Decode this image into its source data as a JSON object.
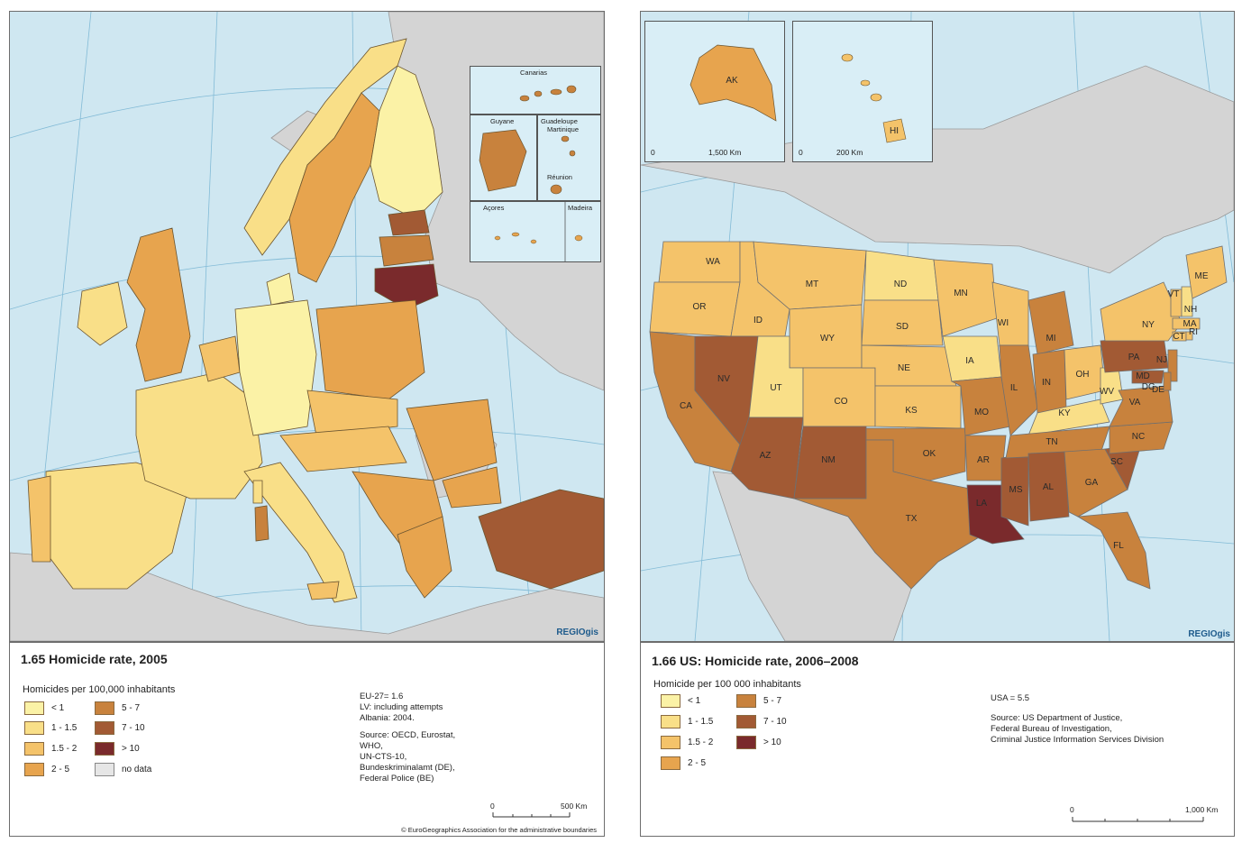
{
  "eu": {
    "title": "1.65 Homicide rate, 2005",
    "legend_heading": "Homicides per 100,000 inhabitants",
    "legend": [
      {
        "label": "< 1",
        "color": "#fbf2a6"
      },
      {
        "label": "1 - 1.5",
        "color": "#f9df88"
      },
      {
        "label": "1.5 - 2",
        "color": "#f4c36a"
      },
      {
        "label": "2 - 5",
        "color": "#e7a44e"
      },
      {
        "label": "5 - 7",
        "color": "#c8823d"
      },
      {
        "label": "7 - 10",
        "color": "#a25a34"
      },
      {
        "label": "> 10",
        "color": "#7a2a2c"
      },
      {
        "label": "no data",
        "color": "#e6e6e6"
      }
    ],
    "notes": [
      "EU-27= 1.6",
      "LV: including attempts",
      "Albania: 2004."
    ],
    "source": [
      "Source: OECD, Eurostat,",
      "WHO,",
      "UN-CTS-10,",
      "Bundeskriminalamt (DE),",
      "Federal Police (BE)"
    ],
    "scale": {
      "start": "0",
      "end": "500 Km"
    },
    "copyright": "© EuroGeographics Association for the administrative boundaries",
    "logo": "REGIOgis",
    "insets": [
      "Canarias",
      "Guyane",
      "Guadeloupe",
      "Martinique",
      "Réunion",
      "Açores",
      "Madeira"
    ]
  },
  "us": {
    "title": "1.66 US: Homicide rate, 2006–2008",
    "legend_heading": "Homicide per 100 000 inhabitants",
    "legend": [
      {
        "label": "< 1",
        "color": "#fbf2a6"
      },
      {
        "label": "1 - 1.5",
        "color": "#f9df88"
      },
      {
        "label": "1.5 - 2",
        "color": "#f4c36a"
      },
      {
        "label": "2 - 5",
        "color": "#e7a44e"
      },
      {
        "label": "5 - 7",
        "color": "#c8823d"
      },
      {
        "label": "7 - 10",
        "color": "#a25a34"
      },
      {
        "label": "> 10",
        "color": "#7a2a2c"
      }
    ],
    "notes": [
      "USA = 5.5"
    ],
    "source": [
      "Source:  US Department of Justice,",
      "Federal Bureau of Investigation,",
      "Criminal Justice Information Services Division"
    ],
    "scale": {
      "start": "0",
      "end": "1,000 Km"
    },
    "ak_scale": {
      "start": "0",
      "end": "1,500 Km"
    },
    "hi_scale": {
      "start": "0",
      "end": "200 Km"
    },
    "logo": "REGIOgis",
    "states": [
      {
        "code": "WA",
        "cls": "1.5 - 2"
      },
      {
        "code": "OR",
        "cls": "1.5 - 2"
      },
      {
        "code": "CA",
        "cls": "5 - 7"
      },
      {
        "code": "ID",
        "cls": "1.5 - 2"
      },
      {
        "code": "NV",
        "cls": "7 - 10"
      },
      {
        "code": "MT",
        "cls": "1.5 - 2"
      },
      {
        "code": "WY",
        "cls": "1.5 - 2"
      },
      {
        "code": "UT",
        "cls": "1 - 1.5"
      },
      {
        "code": "AZ",
        "cls": "7 - 10"
      },
      {
        "code": "CO",
        "cls": "1.5 - 2"
      },
      {
        "code": "NM",
        "cls": "7 - 10"
      },
      {
        "code": "ND",
        "cls": "1 - 1.5"
      },
      {
        "code": "SD",
        "cls": "1.5 - 2"
      },
      {
        "code": "NE",
        "cls": "1.5 - 2"
      },
      {
        "code": "KS",
        "cls": "1.5 - 2"
      },
      {
        "code": "OK",
        "cls": "5 - 7"
      },
      {
        "code": "TX",
        "cls": "5 - 7"
      },
      {
        "code": "MN",
        "cls": "1.5 - 2"
      },
      {
        "code": "IA",
        "cls": "1 - 1.5"
      },
      {
        "code": "MO",
        "cls": "5 - 7"
      },
      {
        "code": "AR",
        "cls": "5 - 7"
      },
      {
        "code": "LA",
        "cls": "> 10"
      },
      {
        "code": "WI",
        "cls": "1.5 - 2"
      },
      {
        "code": "IL",
        "cls": "5 - 7"
      },
      {
        "code": "MS",
        "cls": "7 - 10"
      },
      {
        "code": "MI",
        "cls": "5 - 7"
      },
      {
        "code": "IN",
        "cls": "5 - 7"
      },
      {
        "code": "KY",
        "cls": "1 - 1.5"
      },
      {
        "code": "TN",
        "cls": "5 - 7"
      },
      {
        "code": "AL",
        "cls": "7 - 10"
      },
      {
        "code": "OH",
        "cls": "1.5 - 2"
      },
      {
        "code": "WV",
        "cls": "1 - 1.5"
      },
      {
        "code": "GA",
        "cls": "5 - 7"
      },
      {
        "code": "FL",
        "cls": "5 - 7"
      },
      {
        "code": "SC",
        "cls": "7 - 10"
      },
      {
        "code": "NC",
        "cls": "5 - 7"
      },
      {
        "code": "VA",
        "cls": "5 - 7"
      },
      {
        "code": "PA",
        "cls": "7 - 10"
      },
      {
        "code": "NY",
        "cls": "1.5 - 2"
      },
      {
        "code": "NJ",
        "cls": "5 - 7"
      },
      {
        "code": "MD",
        "cls": "7 - 10"
      },
      {
        "code": "DC",
        "cls": "> 10"
      },
      {
        "code": "DE",
        "cls": "5 - 7"
      },
      {
        "code": "CT",
        "cls": "1.5 - 2"
      },
      {
        "code": "RI",
        "cls": "1.5 - 2"
      },
      {
        "code": "MA",
        "cls": "1.5 - 2"
      },
      {
        "code": "VT",
        "cls": "1.5 - 2"
      },
      {
        "code": "NH",
        "cls": "1 - 1.5"
      },
      {
        "code": "ME",
        "cls": "1.5 - 2"
      },
      {
        "code": "AK",
        "cls": "2 - 5"
      },
      {
        "code": "HI",
        "cls": "1.5 - 2"
      }
    ]
  },
  "colors": {
    "sea": "#cfe7f1",
    "land_other": "#d4d4d4",
    "border": "#6a5430"
  }
}
